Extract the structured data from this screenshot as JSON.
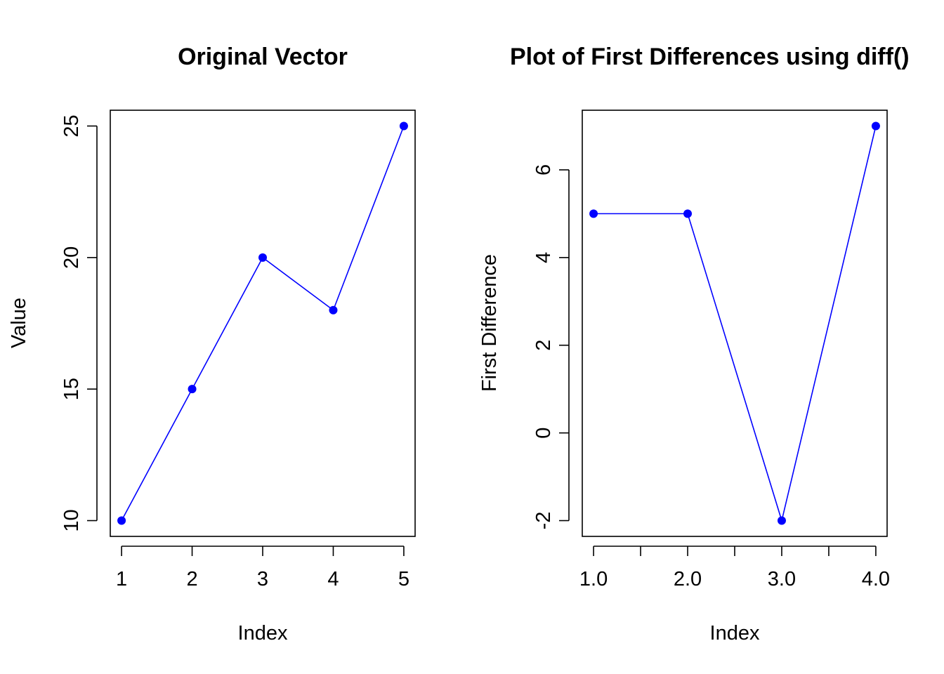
{
  "colors": {
    "series": "#0000ff",
    "axis": "#000000",
    "background": "#ffffff"
  },
  "chart_data": [
    {
      "type": "line",
      "title": "Original Vector",
      "xlabel": "Index",
      "ylabel": "Value",
      "x": [
        1,
        2,
        3,
        4,
        5
      ],
      "series": [
        {
          "values": [
            10,
            15,
            20,
            18,
            25
          ]
        }
      ],
      "xlim": [
        0.84,
        5.16
      ],
      "ylim": [
        9.4,
        25.6
      ],
      "xticks": [
        1,
        2,
        3,
        4,
        5
      ],
      "xtick_labels": [
        "1",
        "2",
        "3",
        "4",
        "5"
      ],
      "yticks": [
        10,
        15,
        20,
        25
      ],
      "ytick_labels": [
        "10",
        "15",
        "20",
        "25"
      ],
      "markers": "filled-circle",
      "grid": false,
      "legend": "none"
    },
    {
      "type": "line",
      "title": "Plot of First Differences using diff()",
      "xlabel": "Index",
      "ylabel": "First Difference",
      "x": [
        1,
        2,
        3,
        4
      ],
      "series": [
        {
          "values": [
            5,
            5,
            -2,
            7
          ]
        }
      ],
      "xlim": [
        0.88,
        4.12
      ],
      "ylim": [
        -2.36,
        7.36
      ],
      "xticks": [
        1,
        1.5,
        2,
        2.5,
        3,
        3.5,
        4
      ],
      "xtick_labels": [
        "1.0",
        "",
        "2.0",
        "",
        "3.0",
        "",
        "4.0"
      ],
      "yticks": [
        -2,
        0,
        2,
        4,
        6
      ],
      "ytick_labels": [
        "-2",
        "0",
        "2",
        "4",
        "6"
      ],
      "markers": "filled-circle",
      "grid": false,
      "legend": "none"
    }
  ]
}
